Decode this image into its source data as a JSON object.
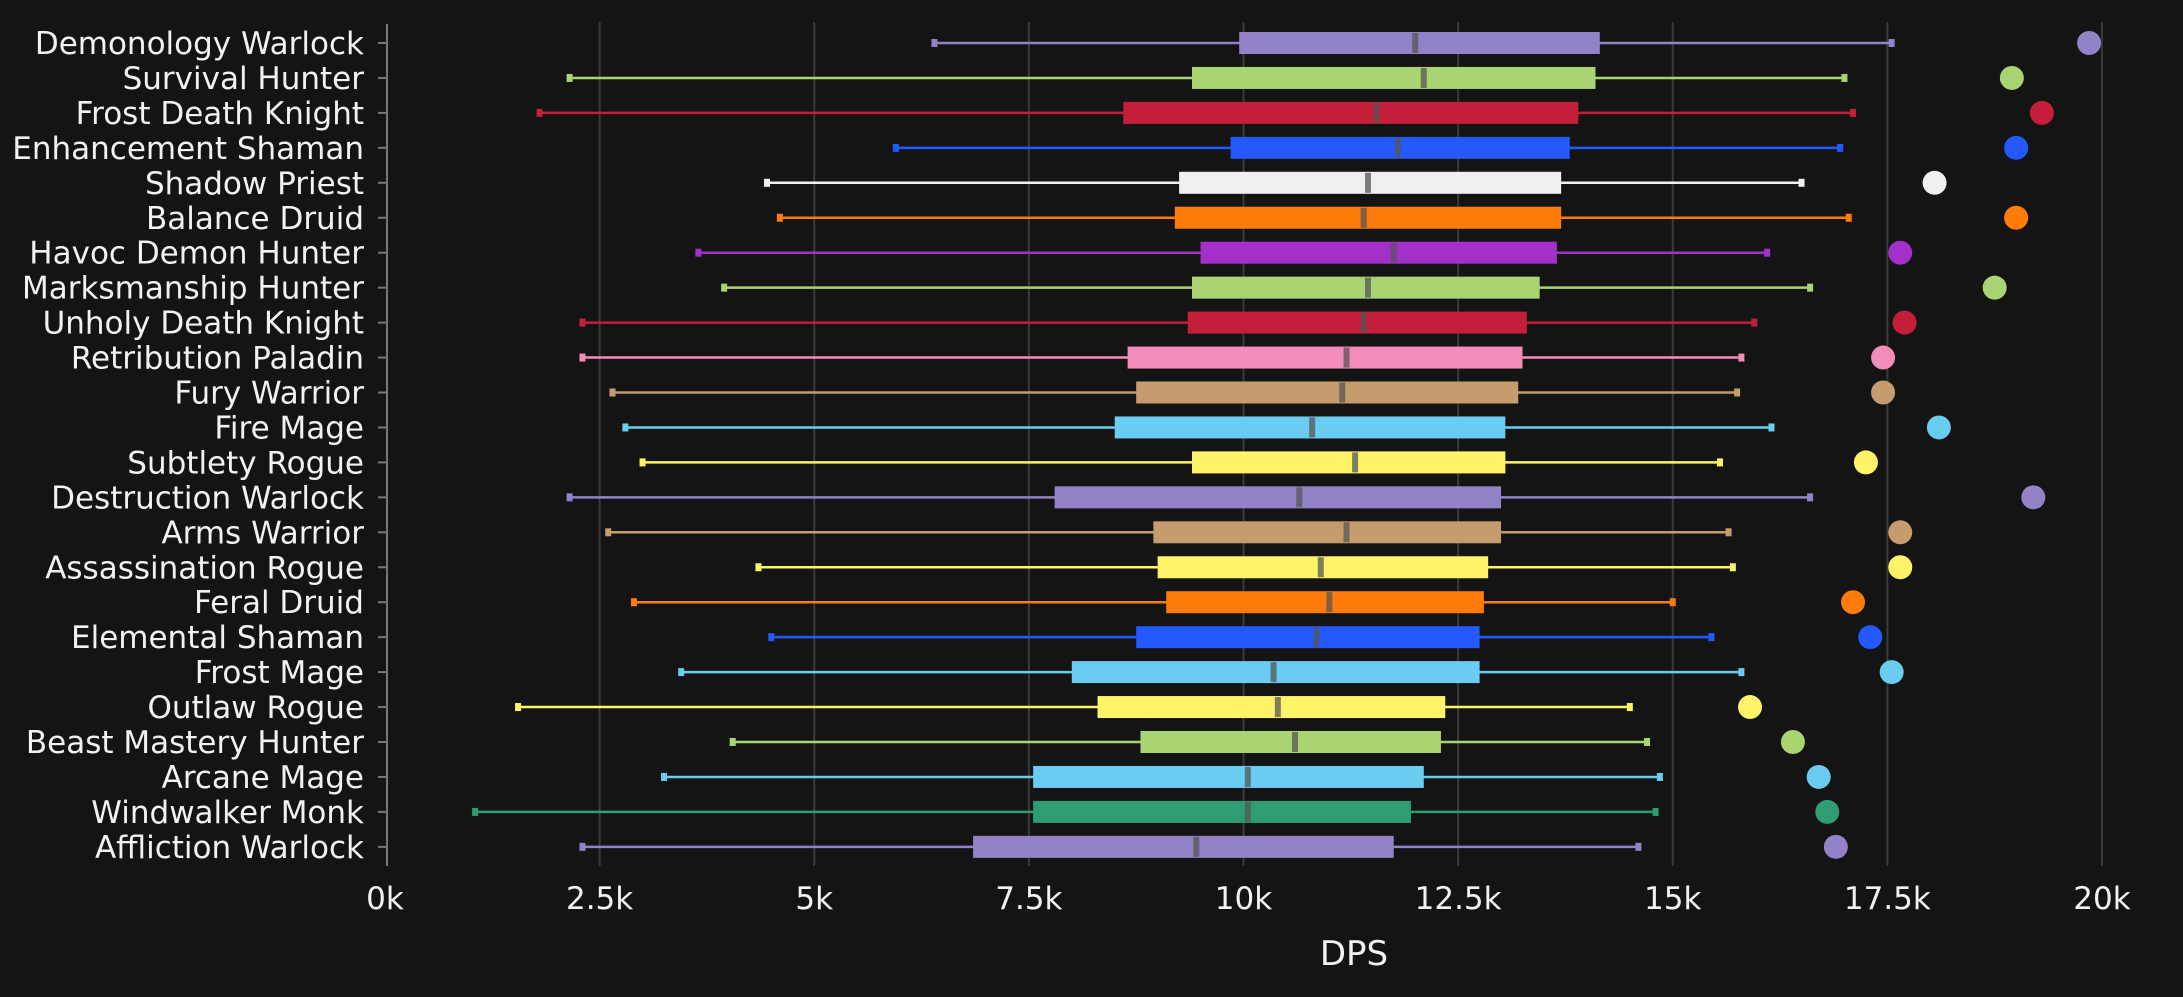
{
  "chart_data": {
    "type": "boxplot",
    "title": "",
    "xlabel": "DPS",
    "ylabel": "",
    "xlim": [
      0,
      20000
    ],
    "x_ticks": [
      0,
      2500,
      5000,
      7500,
      10000,
      12500,
      15000,
      17500,
      20000
    ],
    "x_tick_labels": [
      "0k",
      "2.5k",
      "5k",
      "7.5k",
      "10k",
      "12.5k",
      "15k",
      "17.5k",
      "20k"
    ],
    "grid": "vertical",
    "series": [
      {
        "name": "Demonology Warlock",
        "color": "#9482C9",
        "min": 6400,
        "q1": 9950,
        "median": 12000,
        "q3": 14150,
        "max": 17550,
        "top": 19850
      },
      {
        "name": "Survival Hunter",
        "color": "#AAD372",
        "min": 2150,
        "q1": 9400,
        "median": 12100,
        "q3": 14100,
        "max": 17000,
        "top": 18950
      },
      {
        "name": "Frost Death Knight",
        "color": "#C41E3A",
        "min": 1800,
        "q1": 8600,
        "median": 11550,
        "q3": 13900,
        "max": 17100,
        "top": 19300
      },
      {
        "name": "Enhancement Shaman",
        "color": "#2359FF",
        "min": 5950,
        "q1": 9850,
        "median": 11800,
        "q3": 13800,
        "max": 16950,
        "top": 19000
      },
      {
        "name": "Shadow Priest",
        "color": "#F0F0F0",
        "min": 4450,
        "q1": 9250,
        "median": 11450,
        "q3": 13700,
        "max": 16500,
        "top": 18050
      },
      {
        "name": "Balance Druid",
        "color": "#FF7C0A",
        "min": 4600,
        "q1": 9200,
        "median": 11400,
        "q3": 13700,
        "max": 17050,
        "top": 19000
      },
      {
        "name": "Havoc Demon Hunter",
        "color": "#A330C9",
        "min": 3650,
        "q1": 9500,
        "median": 11750,
        "q3": 13650,
        "max": 16100,
        "top": 17650
      },
      {
        "name": "Marksmanship Hunter",
        "color": "#AAD372",
        "min": 3950,
        "q1": 9400,
        "median": 11450,
        "q3": 13450,
        "max": 16600,
        "top": 18750
      },
      {
        "name": "Unholy Death Knight",
        "color": "#C41E3A",
        "min": 2300,
        "q1": 9350,
        "median": 11400,
        "q3": 13300,
        "max": 15950,
        "top": 17700
      },
      {
        "name": "Retribution Paladin",
        "color": "#F48CBA",
        "min": 2300,
        "q1": 8650,
        "median": 11200,
        "q3": 13250,
        "max": 15800,
        "top": 17450
      },
      {
        "name": "Fury Warrior",
        "color": "#C69B6D",
        "min": 2650,
        "q1": 8750,
        "median": 11150,
        "q3": 13200,
        "max": 15750,
        "top": 17450
      },
      {
        "name": "Fire Mage",
        "color": "#69CCF0",
        "min": 2800,
        "q1": 8500,
        "median": 10800,
        "q3": 13050,
        "max": 16150,
        "top": 18100
      },
      {
        "name": "Subtlety Rogue",
        "color": "#FFF468",
        "min": 3000,
        "q1": 9400,
        "median": 11300,
        "q3": 13050,
        "max": 15550,
        "top": 17250
      },
      {
        "name": "Destruction Warlock",
        "color": "#9482C9",
        "min": 2150,
        "q1": 7800,
        "median": 10650,
        "q3": 13000,
        "max": 16600,
        "top": 19200
      },
      {
        "name": "Arms Warrior",
        "color": "#C69B6D",
        "min": 2600,
        "q1": 8950,
        "median": 11200,
        "q3": 13000,
        "max": 15650,
        "top": 17650
      },
      {
        "name": "Assassination Rogue",
        "color": "#FFF468",
        "min": 4350,
        "q1": 9000,
        "median": 10900,
        "q3": 12850,
        "max": 15700,
        "top": 17650
      },
      {
        "name": "Feral Druid",
        "color": "#FF7C0A",
        "min": 2900,
        "q1": 9100,
        "median": 11000,
        "q3": 12800,
        "max": 15000,
        "top": 17100
      },
      {
        "name": "Elemental Shaman",
        "color": "#2359FF",
        "min": 4500,
        "q1": 8750,
        "median": 10850,
        "q3": 12750,
        "max": 15450,
        "top": 17300
      },
      {
        "name": "Frost Mage",
        "color": "#69CCF0",
        "min": 3450,
        "q1": 8000,
        "median": 10350,
        "q3": 12750,
        "max": 15800,
        "top": 17550
      },
      {
        "name": "Outlaw Rogue",
        "color": "#FFF468",
        "min": 1550,
        "q1": 8300,
        "median": 10400,
        "q3": 12350,
        "max": 14500,
        "top": 15900
      },
      {
        "name": "Beast Mastery Hunter",
        "color": "#AAD372",
        "min": 4050,
        "q1": 8800,
        "median": 10600,
        "q3": 12300,
        "max": 14700,
        "top": 16400
      },
      {
        "name": "Arcane Mage",
        "color": "#69CCF0",
        "min": 3250,
        "q1": 7550,
        "median": 10050,
        "q3": 12100,
        "max": 14850,
        "top": 16700
      },
      {
        "name": "Windwalker Monk",
        "color": "#2E9E72",
        "min": 1050,
        "q1": 7550,
        "median": 10050,
        "q3": 11950,
        "max": 14800,
        "top": 16800
      },
      {
        "name": "Affliction Warlock",
        "color": "#9482C9",
        "min": 2300,
        "q1": 6850,
        "median": 9450,
        "q3": 11750,
        "max": 14600,
        "top": 16900
      }
    ]
  },
  "colors": {
    "background": "#141414",
    "grid": "#3a3a3a",
    "text": "#f2f2f2",
    "axis": "#777777",
    "median": "#555555"
  }
}
